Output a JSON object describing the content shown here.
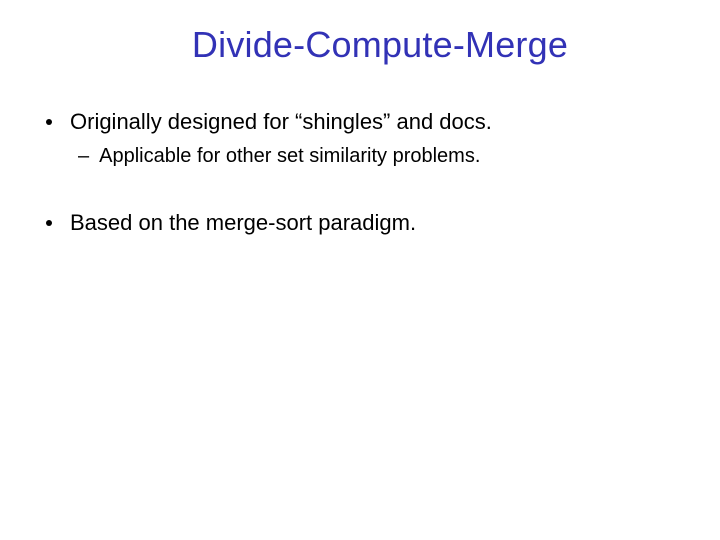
{
  "title": {
    "text": "Divide-Compute-Merge",
    "color": "#3232b6",
    "fontsize": 36
  },
  "bullets": [
    {
      "text": "Originally designed for “shingles” and docs.",
      "fontsize": 22,
      "color": "#000000",
      "sub": [
        {
          "text": "Applicable for other set similarity problems.",
          "fontsize": 20,
          "color": "#000000"
        }
      ]
    },
    {
      "text": "Based on the merge-sort paradigm.",
      "fontsize": 22,
      "color": "#000000",
      "sub": []
    }
  ],
  "background_color": "#ffffff",
  "bullet_color": "#000000"
}
